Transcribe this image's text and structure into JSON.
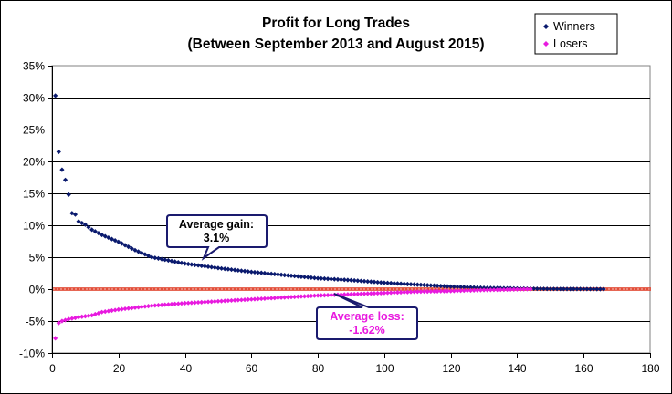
{
  "chart_data": {
    "type": "scatter",
    "title_line1": "Profit for Long Trades",
    "title_line2": "(Between September 2013 and August 2015)",
    "xlabel": "",
    "ylabel": "",
    "xlim": [
      0,
      180
    ],
    "ylim": [
      -10,
      35
    ],
    "x_ticks": [
      0,
      20,
      40,
      60,
      80,
      100,
      120,
      140,
      160,
      180
    ],
    "y_ticks": [
      -10,
      -5,
      0,
      5,
      10,
      15,
      20,
      25,
      30,
      35
    ],
    "y_tick_suffix": "%",
    "y_gridlines": true,
    "legend_position": "top-right",
    "reference_line": {
      "y": 0,
      "color": "#e0402a",
      "extends_to_x": 180
    },
    "series": [
      {
        "name": "Winners",
        "color": "#0a1a6e",
        "marker": "diamond",
        "count": 166,
        "anchors": [
          [
            1,
            30.3
          ],
          [
            2,
            21.5
          ],
          [
            3,
            18.7
          ],
          [
            4,
            17.1
          ],
          [
            5,
            14.8
          ],
          [
            6,
            11.9
          ],
          [
            7,
            11.7
          ],
          [
            8,
            10.6
          ],
          [
            10,
            10.1
          ],
          [
            12,
            9.3
          ],
          [
            15,
            8.5
          ],
          [
            20,
            7.4
          ],
          [
            25,
            6.1
          ],
          [
            30,
            5.0
          ],
          [
            40,
            4.0
          ],
          [
            50,
            3.3
          ],
          [
            60,
            2.7
          ],
          [
            70,
            2.2
          ],
          [
            80,
            1.7
          ],
          [
            90,
            1.4
          ],
          [
            100,
            1.0
          ],
          [
            110,
            0.7
          ],
          [
            120,
            0.4
          ],
          [
            130,
            0.2
          ],
          [
            140,
            0.1
          ],
          [
            150,
            0.03
          ],
          [
            166,
            0.0
          ]
        ]
      },
      {
        "name": "Losers",
        "color": "#e81adf",
        "marker": "diamond",
        "count": 144,
        "anchors": [
          [
            1,
            -7.7
          ],
          [
            2,
            -5.3
          ],
          [
            3,
            -5.0
          ],
          [
            5,
            -4.7
          ],
          [
            8,
            -4.4
          ],
          [
            12,
            -4.1
          ],
          [
            15,
            -3.6
          ],
          [
            20,
            -3.2
          ],
          [
            30,
            -2.6
          ],
          [
            40,
            -2.2
          ],
          [
            50,
            -1.9
          ],
          [
            60,
            -1.6
          ],
          [
            70,
            -1.3
          ],
          [
            80,
            -1.0
          ],
          [
            90,
            -0.8
          ],
          [
            100,
            -0.6
          ],
          [
            110,
            -0.4
          ],
          [
            120,
            -0.3
          ],
          [
            130,
            -0.15
          ],
          [
            144,
            0.0
          ]
        ]
      }
    ],
    "annotations": [
      {
        "id": "gain",
        "line1": "Average gain:",
        "line2": "3.1%",
        "color": "#000000",
        "border": "#1a1a6e"
      },
      {
        "id": "loss",
        "line1": "Average loss:",
        "line2": "-1.62%",
        "color": "#e81adf",
        "border": "#1a1a6e"
      }
    ]
  }
}
